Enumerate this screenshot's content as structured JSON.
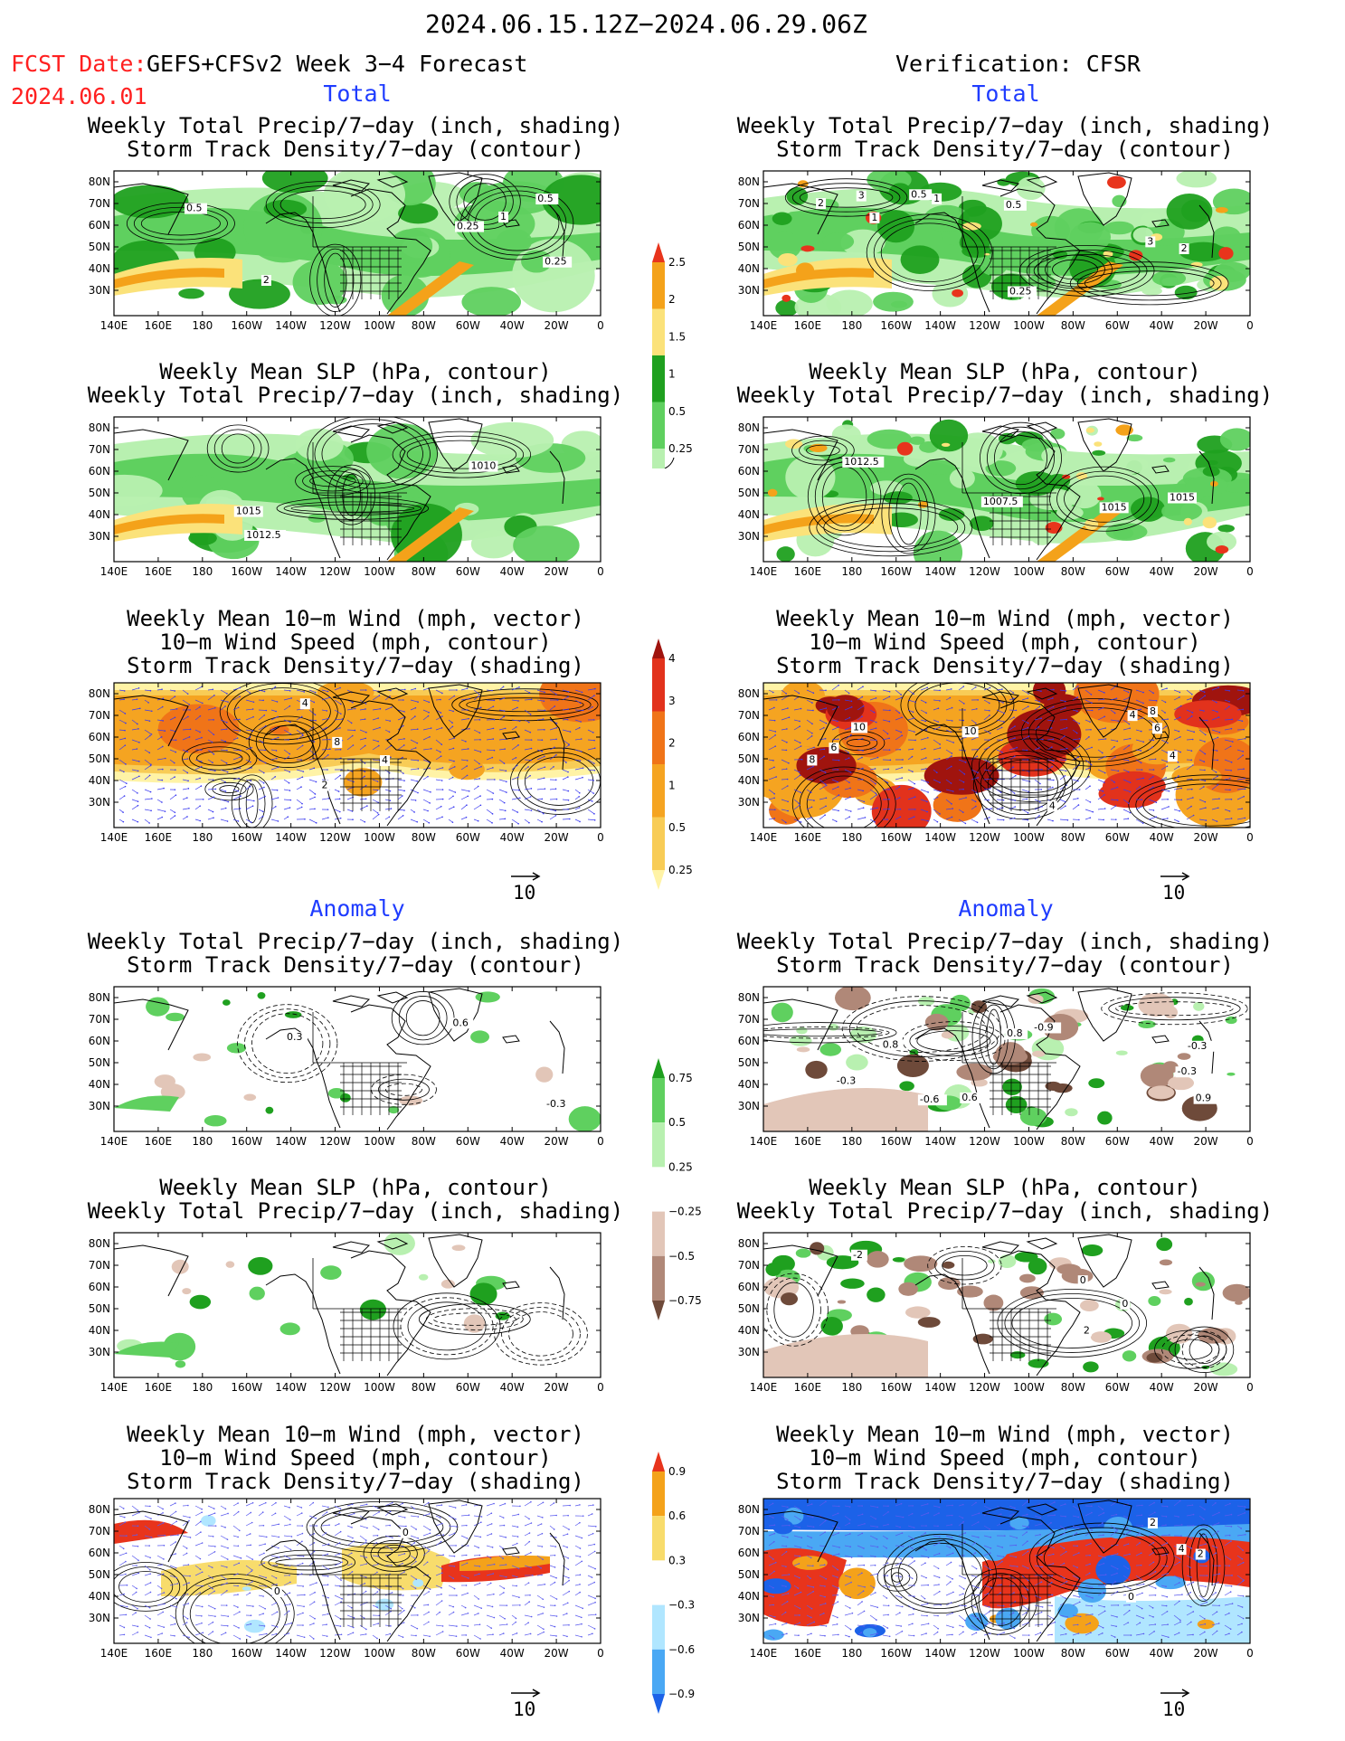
{
  "header": {
    "date_range": "2024.06.15.12Z−2024.06.29.06Z",
    "fcst_label": "FCST Date:",
    "fcst_model": "GEFS+CFSv2 Week 3−4 Forecast",
    "fcst_date": "2024.06.01",
    "verification": "Verification: CFSR"
  },
  "sections": {
    "total": "Total",
    "anomaly": "Anomaly"
  },
  "titles": {
    "precip_storm": [
      "Weekly Total Precip/7−day (inch, shading)",
      "Storm Track Density/7−day (contour)"
    ],
    "slp_precip": [
      "Weekly Mean SLP (hPa, contour)",
      "Weekly Total Precip/7−day (inch, shading)"
    ],
    "wind_storm": [
      "Weekly Mean 10−m Wind (mph, vector)",
      "10−m Wind Speed (mph, contour)",
      "Storm Track Density/7−day (shading)"
    ]
  },
  "axes": {
    "lon_labels": [
      "140E",
      "160E",
      "180",
      "160W",
      "140W",
      "120W",
      "100W",
      "80W",
      "60W",
      "40W",
      "20W",
      "0"
    ],
    "lat_labels": [
      "80N",
      "70N",
      "60N",
      "50N",
      "40N",
      "30N"
    ]
  },
  "vector_scale": "10",
  "colorbars": {
    "total_precip": {
      "labels": [
        "2.5",
        "2",
        "1.5",
        "1",
        "0.5",
        "0.25"
      ],
      "colors": [
        "#e8341c",
        "#f4a21a",
        "#fbe27a",
        "#1fa01f",
        "#5fd05f",
        "#b8f0b0"
      ]
    },
    "total_storm": {
      "labels": [
        "4",
        "3",
        "2",
        "1",
        "0.5",
        "0.25"
      ],
      "colors": [
        "#a0140e",
        "#e2321c",
        "#f07418",
        "#f5a421",
        "#f8cc56",
        "#fff3a6"
      ]
    },
    "anom_precip": {
      "labels": [
        "0.75",
        "0.5",
        "0.25",
        "−0.25",
        "−0.5",
        "−0.75"
      ],
      "colors": [
        "#1fa01f",
        "#5fd05f",
        "#b8f0b0",
        "#ffffff",
        "#e2c6b8",
        "#b08878",
        "#6e4a3a"
      ]
    },
    "anom_storm": {
      "labels": [
        "0.9",
        "0.6",
        "0.3",
        "−0.3",
        "−0.6",
        "−0.9"
      ],
      "colors": [
        "#e8341c",
        "#f4a21a",
        "#f8dc6c",
        "#ffffff",
        "#b0e6ff",
        "#4aa8f4",
        "#1c62e8"
      ]
    }
  },
  "contour_labels": {
    "fc_total_precip": [
      "0.5",
      "1",
      "0.5",
      "0.25",
      "2",
      "0.25"
    ],
    "vr_total_precip": [
      "1",
      "0.25",
      "0.5",
      "3",
      "1",
      "2",
      "3",
      "0.5",
      "2"
    ],
    "fc_total_slp": [
      "1015",
      "1012.5",
      "1010"
    ],
    "vr_total_slp": [
      "1007.5",
      "1015",
      "1012.5",
      "1015"
    ],
    "fc_total_wind": [
      "4",
      "2",
      "4",
      "8"
    ],
    "vr_total_wind": [
      "4",
      "6",
      "4",
      "8",
      "4",
      "10",
      "6",
      "10",
      "8"
    ],
    "fc_anom_precip": [
      "0.3",
      "0.6",
      "-0.3"
    ],
    "vr_anom_precip": [
      "-0.9",
      "0.6",
      "-0.6",
      "-0.3",
      "-0.3",
      "0.9",
      "-0.3",
      "0.8",
      "0.8"
    ],
    "fc_anom_wind": [
      "0",
      "0"
    ],
    "vr_anom_wind": [
      "2",
      "2",
      "4",
      "0"
    ],
    "vr_anom_slp": [
      "2",
      "0",
      "-2",
      "0"
    ]
  }
}
